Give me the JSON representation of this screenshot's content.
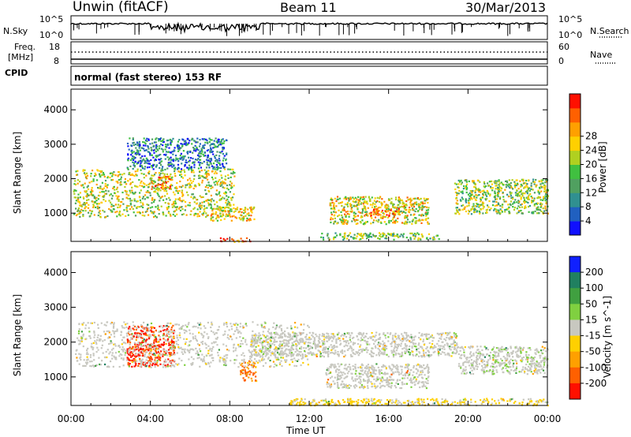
{
  "header": {
    "station": "Unwin (fitACF)",
    "beam": "Beam 11",
    "date": "30/Mar/2013"
  },
  "strip": {
    "nsky_label": "N.Sky",
    "nsearch_label": "N.Search",
    "noise_ticks": [
      "10^5",
      "10^0"
    ],
    "freq_label": "Freq.",
    "freq_unit": "[MHz]",
    "freq_ticks": [
      "18",
      "8"
    ],
    "nave_label": "Nave",
    "nave_ticks": [
      "60",
      "0"
    ],
    "cpid_label": "CPID",
    "cpid_text": "normal (fast stereo) 153 RF"
  },
  "chart_data": [
    {
      "type": "heatmap",
      "title": "",
      "xlabel": "Time UT",
      "ylabel": "Slant Range [km]",
      "x_ticks": [
        "00:00",
        "04:00",
        "08:00",
        "12:00",
        "16:00",
        "20:00",
        "00:00"
      ],
      "y_ticks": [
        1000,
        2000,
        3000,
        4000
      ],
      "xlim_hours": [
        0,
        24
      ],
      "ylim_km": [
        180,
        4600
      ],
      "colorbar": {
        "label": "Power [dB]",
        "ticks": [
          4,
          8,
          12,
          16,
          20,
          24,
          28
        ],
        "range": [
          0,
          30
        ],
        "colors": [
          "#1010ff",
          "#2060c0",
          "#309090",
          "#50a060",
          "#40c040",
          "#b0d020",
          "#ffd000",
          "#ffa000",
          "#ff6000",
          "#ff1000"
        ]
      },
      "regions": [
        {
          "t0": 0.1,
          "t1": 8.2,
          "r0": 900,
          "r1": 2300,
          "level": 0.65
        },
        {
          "t0": 2.8,
          "t1": 7.8,
          "r0": 2300,
          "r1": 3200,
          "level": 0.35
        },
        {
          "t0": 4.0,
          "t1": 5.0,
          "r0": 1700,
          "r1": 2100,
          "level": 0.9
        },
        {
          "t0": 7.0,
          "t1": 9.2,
          "r0": 800,
          "r1": 1200,
          "level": 0.75
        },
        {
          "t0": 13.0,
          "t1": 18.0,
          "r0": 700,
          "r1": 1500,
          "level": 0.7
        },
        {
          "t0": 15.0,
          "t1": 16.5,
          "r0": 900,
          "r1": 1200,
          "level": 0.95
        },
        {
          "t0": 12.5,
          "t1": 18.5,
          "r0": 250,
          "r1": 450,
          "level": 0.55
        },
        {
          "t0": 19.3,
          "t1": 24.0,
          "r0": 1000,
          "r1": 2000,
          "level": 0.6
        },
        {
          "t0": 7.5,
          "t1": 9.0,
          "r0": 180,
          "r1": 300,
          "level": 1.0
        }
      ]
    },
    {
      "type": "heatmap",
      "title": "",
      "xlabel": "Time UT",
      "ylabel": "Slant Range [km]",
      "x_ticks": [
        "00:00",
        "04:00",
        "08:00",
        "12:00",
        "16:00",
        "20:00",
        "00:00"
      ],
      "y_ticks": [
        1000,
        2000,
        3000,
        4000
      ],
      "xlim_hours": [
        0,
        24
      ],
      "ylim_km": [
        180,
        4600
      ],
      "colorbar": {
        "label": "Velocity [m s^-1]",
        "ticks": [
          200,
          100,
          50,
          15,
          -15,
          -50,
          -100,
          -200
        ],
        "range": [
          -250,
          250
        ],
        "colors": [
          "#1020ff",
          "#208060",
          "#40a040",
          "#80d040",
          "#c8c8c0",
          "#ffd000",
          "#ffa000",
          "#ff6000",
          "#ff1000"
        ]
      },
      "regions": [
        {
          "t0": 2.8,
          "t1": 5.2,
          "r0": 1300,
          "r1": 2500,
          "level": -200
        },
        {
          "t0": 8.5,
          "t1": 9.3,
          "r0": 900,
          "r1": 1500,
          "level": -150
        },
        {
          "t0": 0.2,
          "t1": 12.0,
          "r0": 1300,
          "r1": 2600,
          "level": 0
        },
        {
          "t0": 12.8,
          "t1": 18.0,
          "r0": 700,
          "r1": 1400,
          "level": 0
        },
        {
          "t0": 9.0,
          "t1": 19.5,
          "r0": 1600,
          "r1": 2300,
          "level": 0
        },
        {
          "t0": 11.0,
          "t1": 24.0,
          "r0": 200,
          "r1": 400,
          "level": -40
        },
        {
          "t0": 19.5,
          "t1": 24.0,
          "r0": 1100,
          "r1": 1900,
          "level": 5
        }
      ]
    }
  ]
}
